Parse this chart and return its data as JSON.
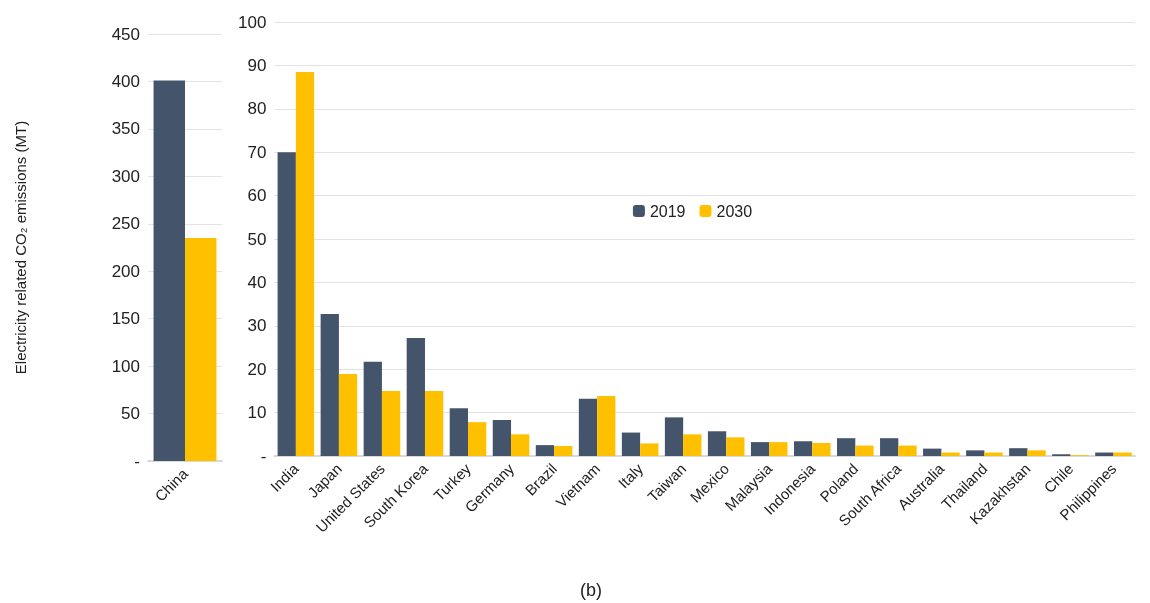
{
  "chart_data": [
    {
      "type": "bar",
      "ylabel": "Electricity related CO₂ emissions (MT)",
      "categories": [
        "China"
      ],
      "series": [
        {
          "color": "#44546a",
          "values": [
            401
          ]
        },
        {
          "color": "#ffc000",
          "values": [
            235
          ]
        }
      ],
      "ylim": [
        0,
        450
      ],
      "yticks": [
        {
          "value": 0,
          "label": "-"
        },
        50,
        100,
        150,
        200,
        250,
        300,
        350,
        400,
        450
      ],
      "grid": "y",
      "legend": false
    },
    {
      "type": "bar",
      "categories": [
        "India",
        "Japan",
        "United States",
        "South Korea",
        "Turkey",
        "Germany",
        "Brazil",
        "Vietnam",
        "Italy",
        "Taiwan",
        "Mexico",
        "Malaysia",
        "Indonesia",
        "Poland",
        "South Africa",
        "Australia",
        "Thailand",
        "Kazakhstan",
        "Chile",
        "Philippines"
      ],
      "series": [
        {
          "name": "2019",
          "color": "#44546a",
          "values": [
            70,
            32.7,
            21.7,
            27.2,
            11,
            8.3,
            2.5,
            13.2,
            5.4,
            8.9,
            5.7,
            3.2,
            3.4,
            4.1,
            4.1,
            1.7,
            1.3,
            1.8,
            0.4,
            0.8
          ]
        },
        {
          "name": "2030",
          "color": "#ffc000",
          "values": [
            88.5,
            18.9,
            15,
            15,
            7.8,
            5,
            2.3,
            13.8,
            2.9,
            5,
            4.3,
            3.2,
            3,
            2.4,
            2.4,
            0.8,
            0.8,
            1.3,
            0.2,
            0.8
          ]
        }
      ],
      "ylim": [
        0,
        100
      ],
      "yticks": [
        {
          "value": 0,
          "label": "-"
        },
        10,
        20,
        30,
        40,
        50,
        60,
        70,
        80,
        90,
        100
      ],
      "grid": "y",
      "legend": "center",
      "annotations": [
        "(b)"
      ]
    }
  ]
}
